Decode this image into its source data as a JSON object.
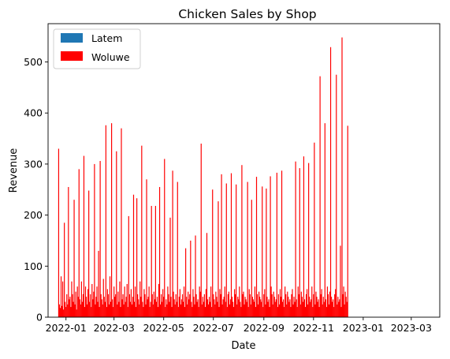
{
  "chart_data": {
    "type": "bar",
    "title": "Chicken Sales by Shop",
    "xlabel": "Date",
    "ylabel": "Revenue",
    "x_range": [
      "2021-12-10",
      "2023-04-05"
    ],
    "ylim": [
      0,
      575
    ],
    "x_ticks": [
      "2022-01",
      "2022-03",
      "2022-05",
      "2022-07",
      "2022-09",
      "2022-11",
      "2023-01",
      "2023-03"
    ],
    "y_ticks": [
      0,
      100,
      200,
      300,
      400,
      500
    ],
    "grid": false,
    "legend_position": "top-left",
    "series": [
      {
        "name": "Latem",
        "color": "#1f77b4",
        "start": "2021-12-23",
        "values": []
      },
      {
        "name": "Woluwe",
        "color": "#ff0000",
        "start": "2021-12-23",
        "values": [
          330,
          25,
          18,
          80,
          22,
          70,
          15,
          185,
          30,
          20,
          45,
          25,
          255,
          35,
          40,
          20,
          70,
          45,
          30,
          230,
          25,
          50,
          15,
          60,
          40,
          290,
          35,
          25,
          70,
          30,
          45,
          316,
          20,
          60,
          40,
          25,
          55,
          248,
          30,
          45,
          20,
          65,
          35,
          50,
          300,
          25,
          40,
          60,
          30,
          130,
          20,
          306,
          45,
          35,
          25,
          75,
          40,
          30,
          376,
          20,
          55,
          45,
          25,
          80,
          30,
          380,
          35,
          20,
          60,
          40,
          45,
          325,
          25,
          50,
          30,
          70,
          20,
          370,
          35,
          45,
          25,
          60,
          30,
          40,
          65,
          20,
          198,
          45,
          30,
          55,
          25,
          40,
          240,
          30,
          60,
          20,
          233,
          45,
          35,
          25,
          70,
          40,
          336,
          30,
          20,
          55,
          45,
          25,
          270,
          35,
          40,
          60,
          20,
          30,
          218,
          45,
          25,
          50,
          35,
          218,
          30,
          40,
          20,
          65,
          255,
          25,
          45,
          30,
          55,
          40,
          310,
          20,
          35,
          25,
          60,
          45,
          30,
          195,
          40,
          20,
          287,
          50,
          35,
          25,
          45,
          30,
          265,
          20,
          40,
          55,
          25,
          35,
          45,
          30,
          60,
          20,
          135,
          40,
          25,
          50,
          35,
          45,
          150,
          30,
          20,
          55,
          40,
          25,
          160,
          45,
          30,
          35,
          20,
          60,
          50,
          340,
          25,
          40,
          30,
          45,
          20,
          55,
          165,
          35,
          25,
          40,
          30,
          60,
          20,
          250,
          45,
          35,
          25,
          50,
          40,
          30,
          227,
          20,
          55,
          45,
          280,
          25,
          35,
          40,
          60,
          30,
          262,
          20,
          45,
          50,
          25,
          35,
          282,
          40,
          30,
          20,
          55,
          45,
          260,
          25,
          40,
          35,
          60,
          30,
          20,
          298,
          45,
          50,
          25,
          40,
          35,
          30,
          265,
          20,
          55,
          45,
          25,
          230,
          40,
          35,
          30,
          60,
          20,
          275,
          45,
          25,
          50,
          40,
          35,
          30,
          256,
          20,
          45,
          55,
          25,
          252,
          40,
          30,
          35,
          20,
          276,
          60,
          45,
          25,
          50,
          40,
          30,
          35,
          283,
          20,
          45,
          25,
          55,
          40,
          287,
          30,
          35,
          20,
          60,
          45,
          25,
          50,
          40,
          30,
          35,
          20,
          45,
          55,
          25,
          40,
          30,
          305,
          35,
          20,
          60,
          45,
          292,
          25,
          50,
          40,
          30,
          315,
          35,
          20,
          45,
          55,
          25,
          302,
          40,
          30,
          35,
          60,
          20,
          45,
          342,
          25,
          50,
          40,
          30,
          35,
          20,
          472,
          45,
          55,
          25,
          40,
          30,
          380,
          35,
          20,
          60,
          45,
          25,
          50,
          529,
          40,
          30,
          35,
          20,
          45,
          55,
          475,
          25,
          40,
          30,
          35,
          140,
          20,
          548,
          45,
          60,
          25,
          50,
          40,
          30,
          375
        ]
      }
    ]
  }
}
